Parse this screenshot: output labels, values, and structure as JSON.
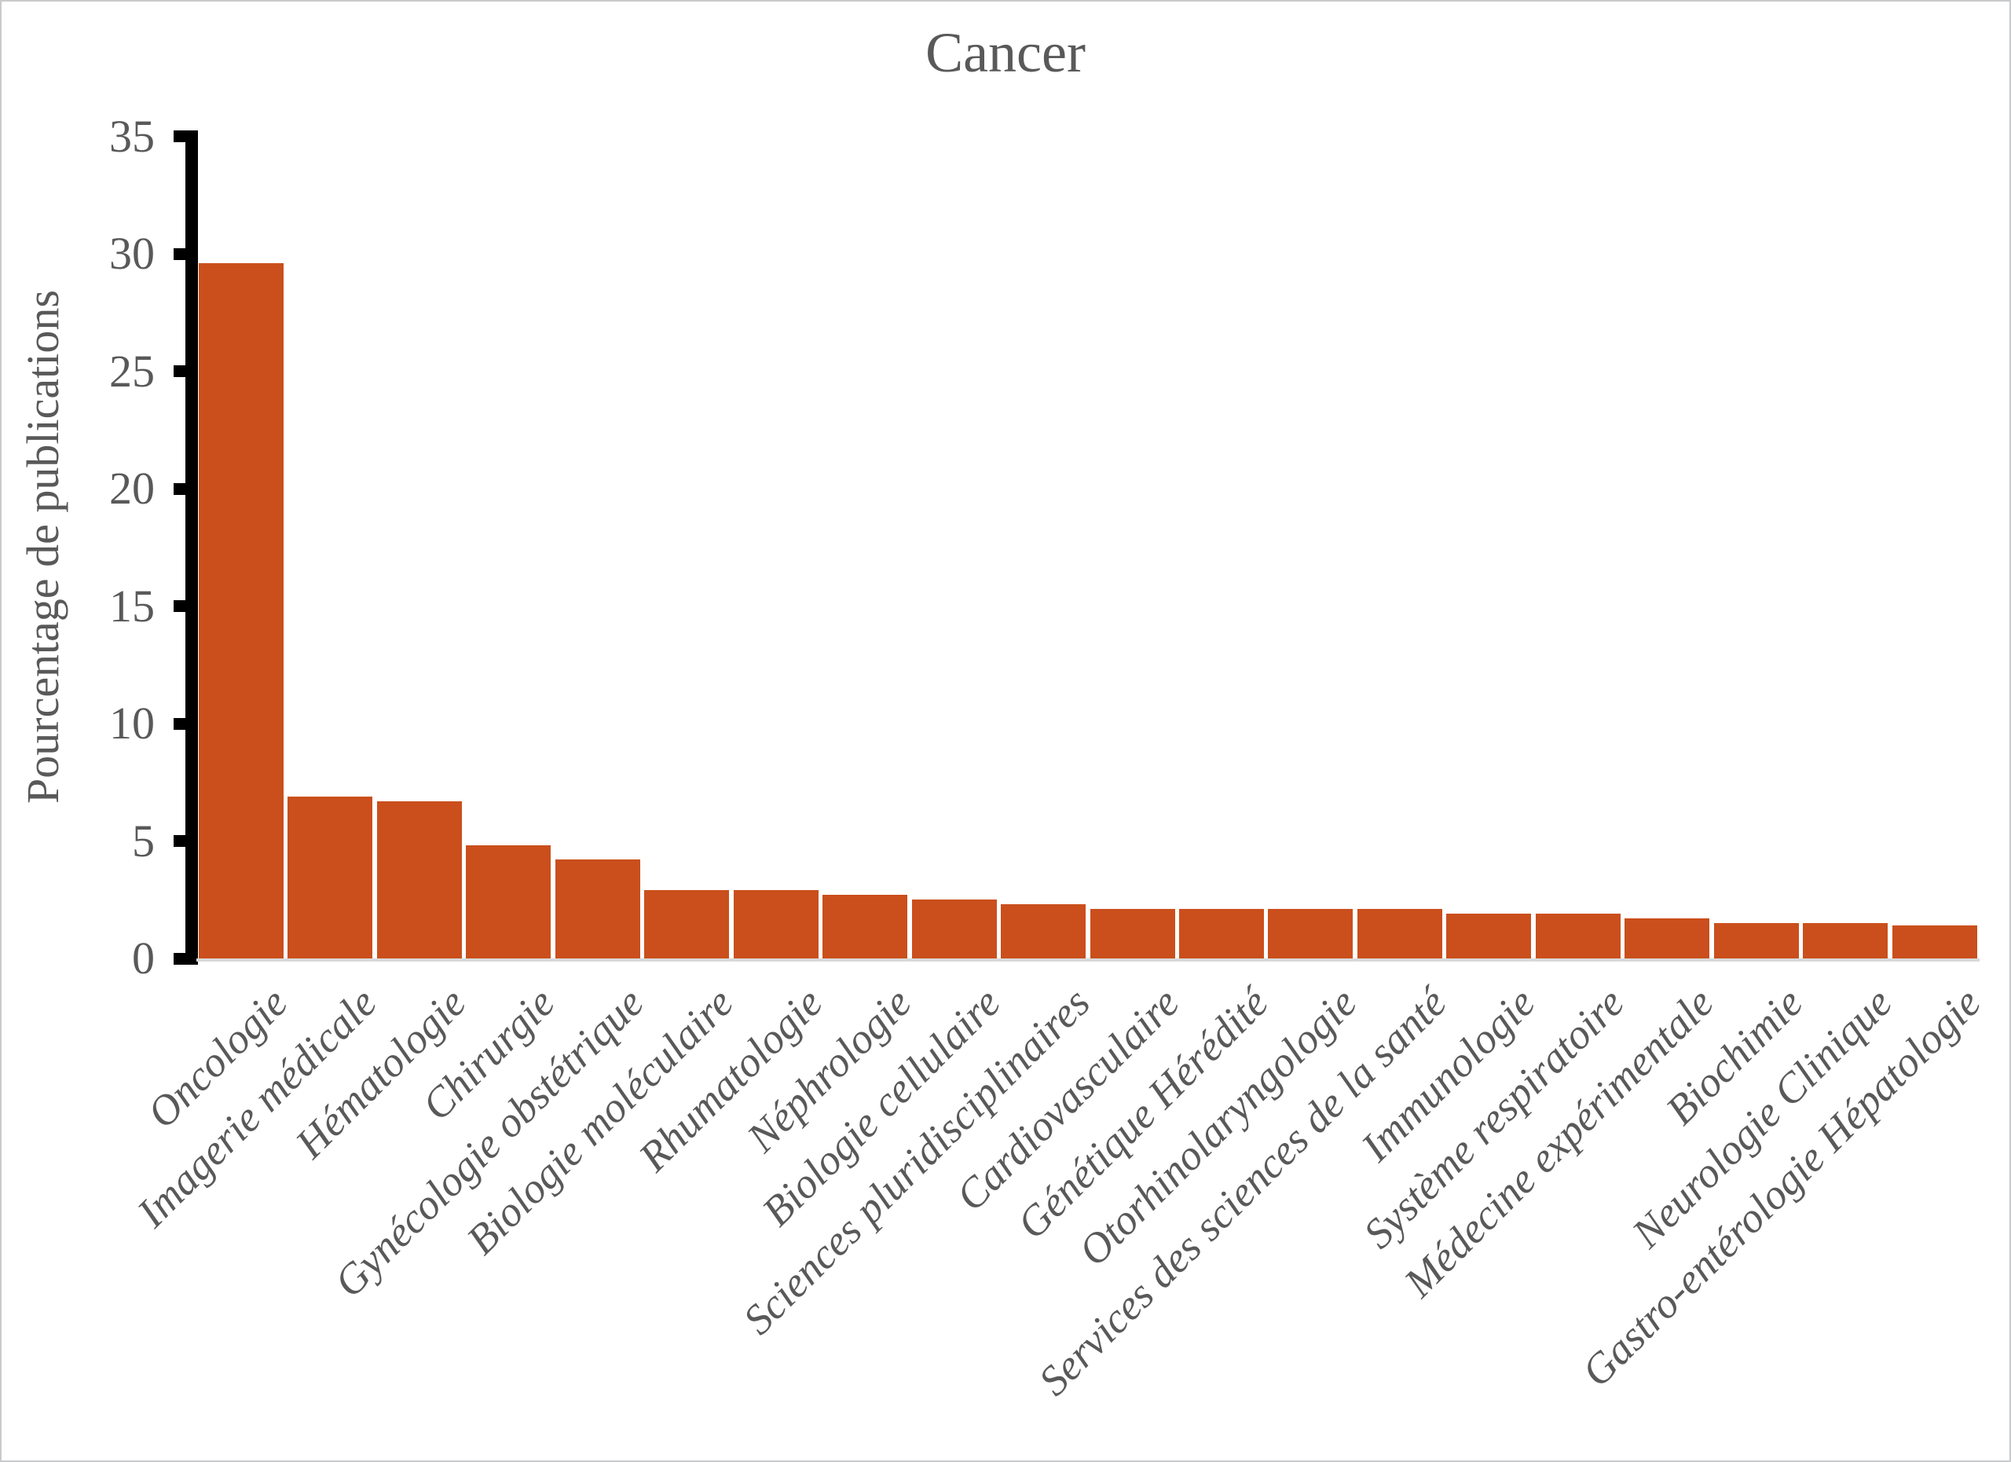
{
  "chart_data": {
    "type": "bar",
    "title": "Cancer",
    "xlabel": "",
    "ylabel": "Pourcentage de publications",
    "categories": [
      "Oncologie",
      "Imagerie médicale",
      "Hématologie",
      "Chirurgie",
      "Gynécologie obstétrique",
      "Biologie moléculaire",
      "Rhumatologie",
      "Néphrologie",
      "Biologie cellulaire",
      "Sciences pluridisciplinaires",
      "Cardiovasculaire",
      "Génétique Hérédité",
      "Otorhinolaryngologie",
      "Services des sciences de la santé",
      "Immunologie",
      "Système respiratoire",
      "Médecine expérimentale",
      "Biochimie",
      "Neurologie Clinique",
      "Gastro-entérologie Hépatologie"
    ],
    "values": [
      29.6,
      6.9,
      6.7,
      4.8,
      4.2,
      2.9,
      2.9,
      2.7,
      2.5,
      2.3,
      2.1,
      2.1,
      2.1,
      2.1,
      1.9,
      1.9,
      1.7,
      1.5,
      1.5,
      1.4
    ],
    "ylim": [
      0,
      35
    ],
    "yticks": [
      0,
      5,
      10,
      15,
      20,
      25,
      30,
      35
    ],
    "grid": false,
    "legend_position": "none",
    "colors": {
      "bar": "#ca4f1c",
      "text": "#595959",
      "axis": "#000000",
      "baseline": "#d9d9d9",
      "frame_border": "#c9cacb",
      "background": "#ffffff"
    }
  }
}
